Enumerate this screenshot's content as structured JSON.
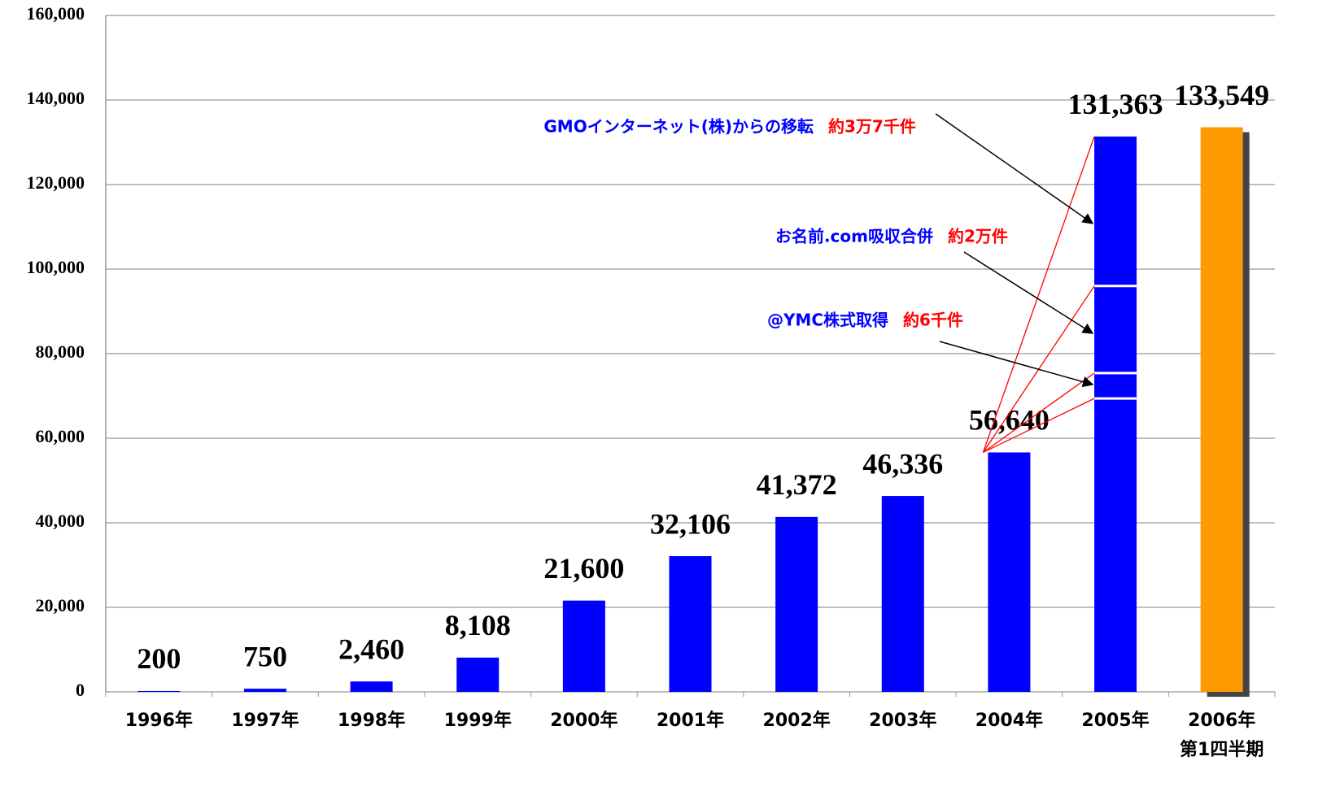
{
  "chart_data": {
    "type": "bar",
    "categories": [
      "1996年",
      "1997年",
      "1998年",
      "1999年",
      "2000年",
      "2001年",
      "2002年",
      "2003年",
      "2004年",
      "2005年",
      "2006年"
    ],
    "category_note": "第1四半期",
    "values": [
      200,
      750,
      2460,
      8108,
      21600,
      32106,
      41372,
      46336,
      56640,
      131363,
      133549
    ],
    "value_labels": [
      "200",
      "750",
      "2,460",
      "8,108",
      "21,600",
      "32,106",
      "41,372",
      "46,336",
      "56,640",
      "131,363",
      "133,549"
    ],
    "colors": [
      "#0000ff",
      "#0000ff",
      "#0000ff",
      "#0000ff",
      "#0000ff",
      "#0000ff",
      "#0000ff",
      "#0000ff",
      "#0000ff",
      "#0000ff",
      "#ff9900"
    ],
    "segment_boundaries": [
      69400,
      75400,
      96000
    ],
    "annotations": [
      {
        "text": "GMOインターネット(株)からの移転",
        "highlight": "約3万7千件",
        "target": 110800
      },
      {
        "text": "お名前.com吸収合併",
        "highlight": "約2万件",
        "target": 84800
      },
      {
        "text": "@YMC株式取得",
        "highlight": "約6千件",
        "target": 72700
      }
    ],
    "ylim": [
      0,
      160000
    ],
    "yticks": [
      0,
      {
        "value": 20000,
        "label": "20,000"
      },
      {
        "value": 40000,
        "label": "40,000"
      },
      {
        "value": 60000,
        "label": "60,000"
      },
      {
        "value": 80000,
        "label": "80,000"
      },
      {
        "value": 100000,
        "label": "100,000"
      },
      {
        "value": 120000,
        "label": "120,000"
      },
      {
        "value": 140000,
        "label": "140,000"
      },
      {
        "value": 160000,
        "label": "160,000"
      }
    ],
    "grid": true
  }
}
